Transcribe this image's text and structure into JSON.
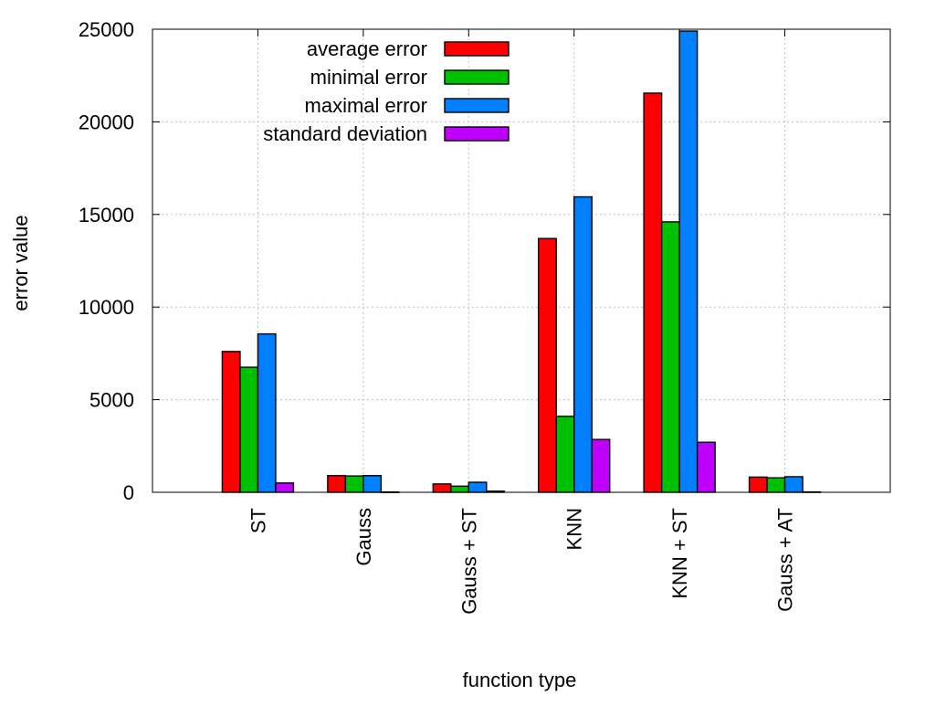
{
  "chart_data": {
    "type": "bar",
    "title": "",
    "xlabel": "function type",
    "ylabel": "error value",
    "ylim": [
      0,
      25000
    ],
    "yticks": [
      0,
      5000,
      10000,
      15000,
      20000,
      25000
    ],
    "grid": true,
    "legend_position": "top-left",
    "categories": [
      "ST",
      "Gauss",
      "Gauss + ST",
      "KNN",
      "KNN + ST",
      "Gauss + AT"
    ],
    "series": [
      {
        "name": "average error",
        "color": "#ff0000",
        "values": [
          7600,
          900,
          450,
          13700,
          21550,
          820
        ]
      },
      {
        "name": "minimal error",
        "color": "#00c000",
        "values": [
          6750,
          880,
          330,
          4100,
          14600,
          780
        ]
      },
      {
        "name": "maximal error",
        "color": "#0080ff",
        "values": [
          8550,
          900,
          540,
          15950,
          24900,
          840
        ]
      },
      {
        "name": "standard deviation",
        "color": "#c000ff",
        "values": [
          500,
          15,
          60,
          2850,
          2700,
          20
        ]
      }
    ]
  }
}
